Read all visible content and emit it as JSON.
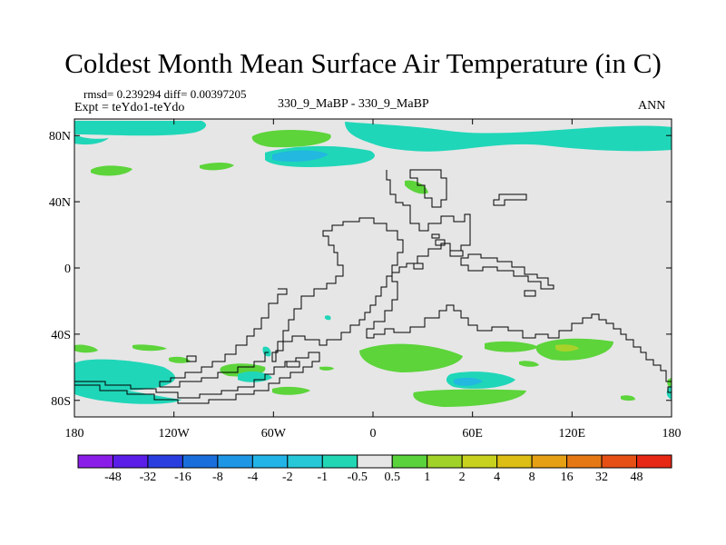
{
  "title": "Coldest Month Mean Surface Air Temperature (in C)",
  "stats": "rmsd= 0.239294 diff= 0.00397205",
  "experiment": "Expt = teYdo1-teYdo",
  "case": "330_9_MaBP - 330_9_MaBP",
  "season": "ANN",
  "axes": {
    "x_ticks": [
      "180",
      "120W",
      "60W",
      "0",
      "60E",
      "120E",
      "180"
    ],
    "y_ticks": [
      "80N",
      "40N",
      "0",
      "40S",
      "80S"
    ]
  },
  "colorbar": {
    "colors": [
      "#8a1ee8",
      "#5a1ee8",
      "#2a3ee0",
      "#1a6edc",
      "#1e96e6",
      "#22b4e6",
      "#26c8d8",
      "#22d6b4",
      "#e6e6e6",
      "#5ad23c",
      "#a0d228",
      "#c8d21e",
      "#dcbe14",
      "#e6a014",
      "#e67814",
      "#e65014",
      "#e62814"
    ],
    "labels": [
      "-48",
      "-32",
      "-16",
      "-8",
      "-4",
      "-2",
      "-1",
      "-0.5",
      "0.5",
      "1",
      "2",
      "4",
      "8",
      "16",
      "32",
      "48"
    ]
  },
  "colors": {
    "background": "#e6e6e6",
    "cool": "#1fd6b8",
    "cooler": "#22b8e0",
    "warm": "#5cd43a",
    "warmer": "#a8d22a",
    "coast": "#000000"
  }
}
